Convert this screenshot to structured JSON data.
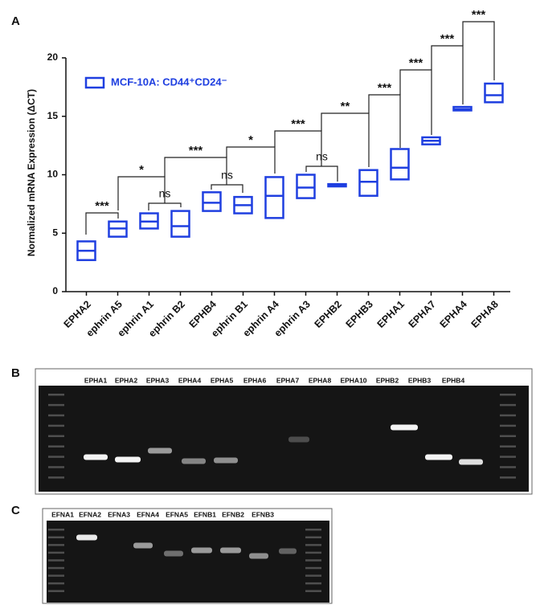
{
  "chart_data": {
    "type": "floating-bar",
    "panel": "A",
    "y_label": "Normalized mRNA Expression (ΔCT)",
    "categories": [
      "EPHA2",
      "ephrin A5",
      "ephrin A1",
      "ephrin B2",
      "EPHB4",
      "ephrin B1",
      "ephrin A4",
      "ephrin A3",
      "EPHB2",
      "EPHB3",
      "EPHA1",
      "EPHA7",
      "EPHA4",
      "EPHA8"
    ],
    "series": [
      {
        "name": "MCF-10A: CD44⁺CD24⁻",
        "color": "#1f3fe0",
        "max": [
          4.3,
          6.0,
          6.7,
          6.9,
          8.5,
          8.1,
          9.8,
          10.0,
          9.2,
          10.4,
          12.2,
          13.2,
          15.8,
          17.8
        ],
        "mean": [
          3.5,
          5.4,
          6.0,
          5.6,
          7.6,
          7.4,
          8.2,
          8.9,
          9.1,
          9.4,
          10.6,
          12.9,
          15.6,
          16.8
        ],
        "min": [
          2.7,
          4.7,
          5.4,
          4.7,
          6.9,
          6.7,
          6.3,
          8.0,
          9.0,
          8.2,
          9.6,
          12.6,
          15.5,
          16.2
        ]
      }
    ],
    "ylim": [
      0,
      20
    ],
    "yticks": [
      0,
      5,
      10,
      15,
      20
    ],
    "annotations": [
      "***",
      "ns",
      "*",
      "ns",
      "***",
      "*",
      "ns",
      "***",
      "**",
      "***",
      "***",
      "***",
      "***"
    ]
  },
  "gels": [
    {
      "panel": "B",
      "lanes": [
        "EPHA1",
        "EPHA2",
        "EPHA3",
        "EPHA4",
        "EPHA5",
        "EPHA6",
        "EPHA7",
        "EPHA8",
        "EPHA10",
        "EPHB2",
        "EPHB3",
        "EPHB4"
      ]
    },
    {
      "panel": "C",
      "lanes": [
        "EFNA1",
        "EFNA2",
        "EFNA3",
        "EFNA4",
        "EFNA5",
        "EFNB1",
        "EFNB2",
        "EFNB3"
      ]
    }
  ]
}
